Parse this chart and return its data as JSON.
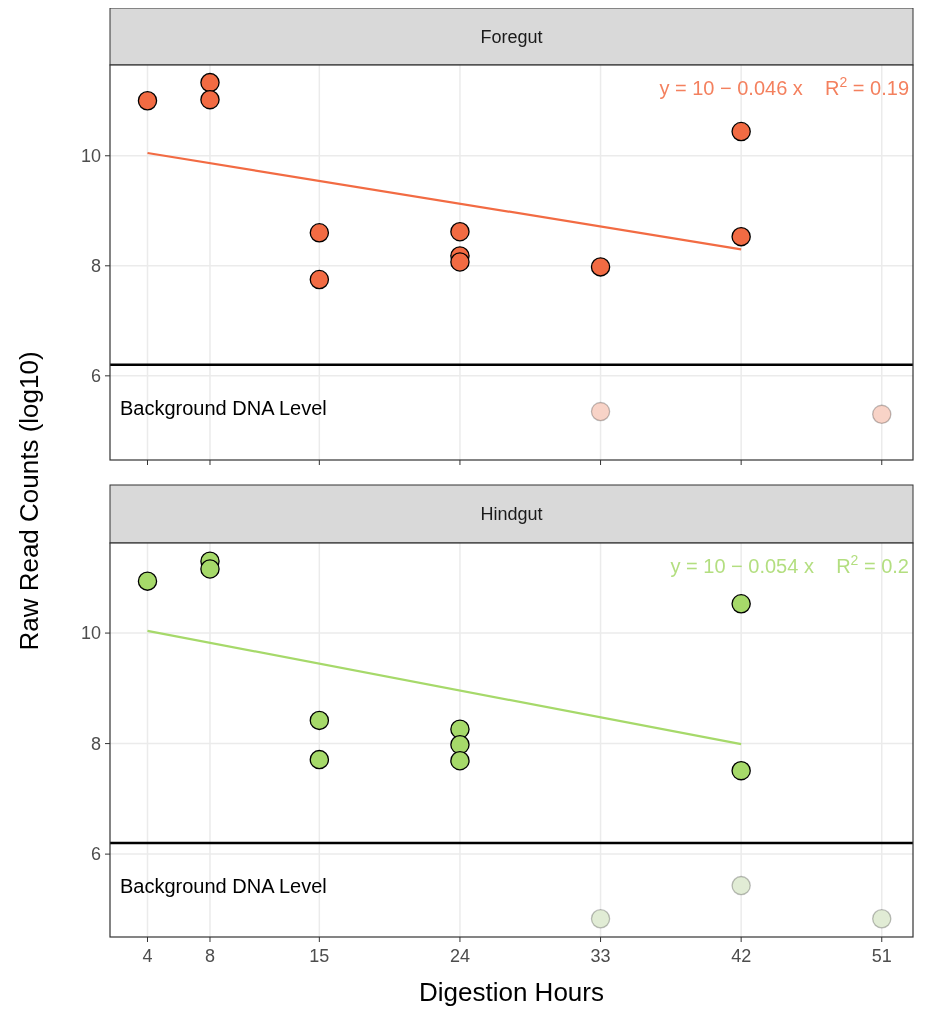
{
  "chart_data": [
    {
      "type": "scatter",
      "title": "Foregut",
      "ylabel": "Raw Read Counts (log10)",
      "xlim": [
        1.6,
        53
      ],
      "xticks": [
        4,
        8,
        15,
        24,
        33,
        42,
        51
      ],
      "ylim": [
        4.47,
        11.65
      ],
      "yticks": [
        6,
        8,
        10
      ],
      "grid": true,
      "tick_labels": "y",
      "annotations": [
        "y = 10 − 0.046 x    R$^{2}$ = 0.19"
      ],
      "ref_lines": [
        {
          "axis": "y",
          "value": 6.2,
          "label": "Background DNA Level",
          "color": "#000000"
        }
      ],
      "series": [
        {
          "marker": "circle",
          "color": "#f26b43",
          "x": [
            4,
            8,
            8,
            15,
            15,
            24,
            24,
            24,
            33,
            42,
            42
          ],
          "values": [
            11.0,
            11.33,
            11.02,
            8.6,
            7.75,
            8.62,
            8.18,
            8.07,
            7.98,
            10.44,
            8.53
          ]
        },
        {
          "marker": "circle",
          "color": "#f8d3c7",
          "x": [
            33,
            51
          ],
          "values": [
            5.35,
            5.3
          ]
        },
        {
          "type": "line",
          "color": "#f26b43",
          "x": [
            4,
            42
          ],
          "values": [
            10.05,
            8.3
          ]
        }
      ]
    },
    {
      "type": "scatter",
      "title": "Hindgut",
      "xlabel": "Digestion Hours",
      "xlim": [
        1.6,
        53
      ],
      "xticks": [
        4,
        8,
        15,
        24,
        33,
        42,
        51
      ],
      "ylim": [
        4.5,
        11.63
      ],
      "yticks": [
        6,
        8,
        10
      ],
      "grid": true,
      "annotations": [
        "y = 10 − 0.054 x    R$^{2}$ = 0.2"
      ],
      "ref_lines": [
        {
          "axis": "y",
          "value": 6.2,
          "label": "Background DNA Level",
          "color": "#000000"
        }
      ],
      "series": [
        {
          "marker": "circle",
          "color": "#a6d96a",
          "x": [
            4,
            8,
            8,
            15,
            15,
            24,
            24,
            24,
            42,
            42
          ],
          "values": [
            10.94,
            11.3,
            11.16,
            8.42,
            7.71,
            8.26,
            7.98,
            7.69,
            10.53,
            7.51
          ]
        },
        {
          "marker": "circle",
          "color": "#e1ecd5",
          "x": [
            42,
            33,
            51
          ],
          "values": [
            5.43,
            4.83,
            4.83
          ]
        },
        {
          "type": "line",
          "color": "#a6d96a",
          "x": [
            4,
            42
          ],
          "values": [
            10.04,
            7.99
          ]
        }
      ]
    }
  ]
}
